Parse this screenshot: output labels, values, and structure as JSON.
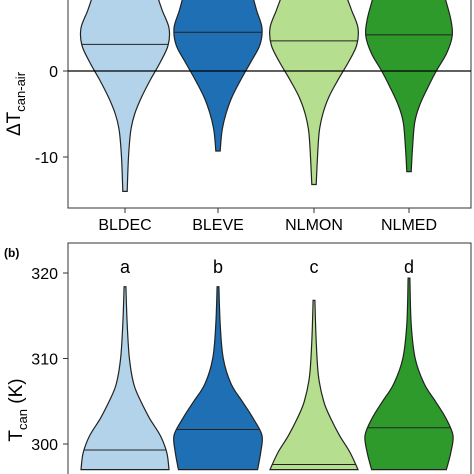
{
  "chart_data": [
    {
      "type": "violin",
      "panel_label": "",
      "ylabel": "ΔT",
      "ylabel_sub": "can-air",
      "ylim": [
        -16,
        8.5
      ],
      "yticks": [
        -10,
        0
      ],
      "ytick_labels": [
        "-10",
        "0"
      ],
      "reference_line": 0,
      "categories": [
        "BLDEC",
        "BLEVE",
        "NLMON",
        "NLMED"
      ],
      "colors": [
        "#b3d3ea",
        "#1f6fb4",
        "#b5df8e",
        "#2e9a2c"
      ],
      "medians": [
        3.1,
        4.5,
        3.5,
        4.2
      ],
      "violins": [
        {
          "min": -14.0,
          "max": 8.5,
          "shape": [
            [
              -14,
              0.05
            ],
            [
              -10,
              0.08
            ],
            [
              -7,
              0.13
            ],
            [
              -5,
              0.22
            ],
            [
              -3,
              0.38
            ],
            [
              -1,
              0.58
            ],
            [
              1,
              0.8
            ],
            [
              3,
              0.98
            ],
            [
              5,
              1.0
            ],
            [
              7,
              0.85
            ],
            [
              8.5,
              0.75
            ]
          ]
        },
        {
          "min": -9.3,
          "max": 8.5,
          "shape": [
            [
              -9.3,
              0.05
            ],
            [
              -7,
              0.09
            ],
            [
              -5,
              0.18
            ],
            [
              -3,
              0.32
            ],
            [
              -1,
              0.52
            ],
            [
              1,
              0.74
            ],
            [
              3,
              0.95
            ],
            [
              5,
              1.0
            ],
            [
              7,
              0.88
            ],
            [
              8.5,
              0.8
            ]
          ]
        },
        {
          "min": -13.2,
          "max": 8.5,
          "shape": [
            [
              -13.2,
              0.05
            ],
            [
              -10,
              0.08
            ],
            [
              -7,
              0.12
            ],
            [
              -5,
              0.2
            ],
            [
              -3,
              0.34
            ],
            [
              -1,
              0.55
            ],
            [
              1,
              0.78
            ],
            [
              3,
              0.97
            ],
            [
              5,
              1.0
            ],
            [
              7,
              0.86
            ],
            [
              8.5,
              0.75
            ]
          ]
        },
        {
          "min": -11.7,
          "max": 8.5,
          "shape": [
            [
              -11.7,
              0.05
            ],
            [
              -9,
              0.08
            ],
            [
              -6,
              0.13
            ],
            [
              -4,
              0.24
            ],
            [
              -2,
              0.42
            ],
            [
              0,
              0.62
            ],
            [
              2,
              0.85
            ],
            [
              4,
              0.98
            ],
            [
              6,
              0.95
            ],
            [
              8.5,
              0.82
            ]
          ]
        }
      ]
    },
    {
      "type": "violin",
      "panel_label": "(b)",
      "ylabel": "T",
      "ylabel_sub": "can",
      "ylabel_unit": " (K)",
      "ylim": [
        297,
        322
      ],
      "yticks": [
        300,
        310,
        320
      ],
      "ytick_labels": [
        "300",
        "310",
        "320"
      ],
      "categories": [
        "BLDEC",
        "BLEVE",
        "NLMON",
        "NLMED"
      ],
      "group_letters": [
        "a",
        "b",
        "c",
        "d"
      ],
      "colors": [
        "#b3d3ea",
        "#1f6fb4",
        "#b5df8e",
        "#2e9a2c"
      ],
      "medians": [
        299.3,
        301.7,
        297.6,
        301.9
      ],
      "violins": [
        {
          "min": 297.0,
          "max": 318.4,
          "shape": [
            [
              297,
              1.0
            ],
            [
              299,
              0.95
            ],
            [
              301,
              0.8
            ],
            [
              303,
              0.56
            ],
            [
              305,
              0.36
            ],
            [
              307,
              0.2
            ],
            [
              310,
              0.1
            ],
            [
              314,
              0.05
            ],
            [
              318.4,
              0.02
            ]
          ]
        },
        {
          "min": 297.0,
          "max": 318.4,
          "shape": [
            [
              297,
              0.9
            ],
            [
              299,
              0.97
            ],
            [
              301,
              1.0
            ],
            [
              303,
              0.8
            ],
            [
              305,
              0.55
            ],
            [
              307,
              0.3
            ],
            [
              310,
              0.12
            ],
            [
              314,
              0.05
            ],
            [
              318.4,
              0.02
            ]
          ]
        },
        {
          "min": 297.0,
          "max": 316.8,
          "shape": [
            [
              297,
              1.0
            ],
            [
              299,
              0.82
            ],
            [
              301,
              0.58
            ],
            [
              303,
              0.38
            ],
            [
              305,
              0.22
            ],
            [
              308,
              0.1
            ],
            [
              312,
              0.05
            ],
            [
              316.8,
              0.02
            ]
          ]
        },
        {
          "min": 297.0,
          "max": 319.4,
          "shape": [
            [
              297,
              0.85
            ],
            [
              299,
              0.95
            ],
            [
              301,
              1.0
            ],
            [
              303,
              0.84
            ],
            [
              305,
              0.6
            ],
            [
              307,
              0.35
            ],
            [
              310,
              0.14
            ],
            [
              314,
              0.05
            ],
            [
              319.4,
              0.02
            ]
          ]
        }
      ]
    }
  ]
}
